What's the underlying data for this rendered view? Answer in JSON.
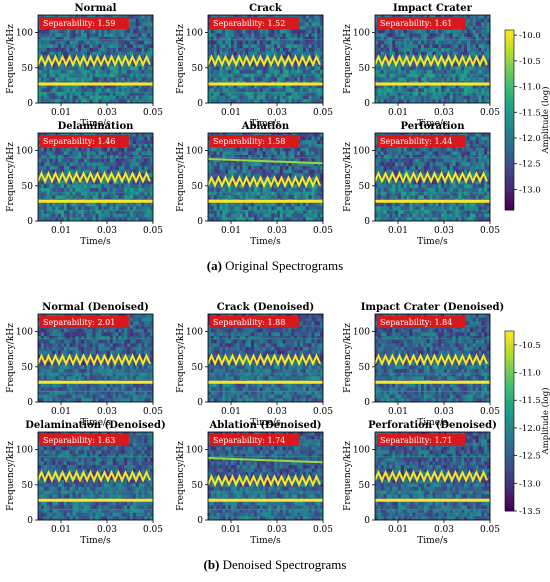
{
  "captions": {
    "top_letter": "(a)",
    "top_text": "Original Spectrograms",
    "bottom_letter": "(b)",
    "bottom_text": "Denoised Spectrograms"
  },
  "axis_labels": {
    "ylabel": "Frequency/kHz",
    "xlabel": "Time/s",
    "colorbar_label": "Amplitude (log)"
  },
  "chart_data": [
    {
      "type": "heatmap",
      "group": "original",
      "x_ticks": [
        0.01,
        0.03,
        0.05
      ],
      "x_tick_labels": [
        "0.01",
        "0.03",
        "0.05"
      ],
      "y_ticks": [
        0,
        50,
        100
      ],
      "y_tick_labels": [
        "0",
        "50",
        "100"
      ],
      "xlim": [
        0,
        0.05
      ],
      "ylim": [
        0,
        125
      ],
      "colorbar": {
        "range": [
          -13.4,
          -9.9
        ],
        "ticks": [
          -10.0,
          -10.5,
          -11.0,
          -11.5,
          -12.0,
          -12.5,
          -13.0
        ],
        "tick_labels": [
          "-10.0",
          "-10.5",
          "-11.0",
          "-11.5",
          "-12.0",
          "-12.5",
          "-13.0"
        ],
        "colormap": "viridis"
      },
      "panels": [
        {
          "title": "Normal",
          "separability_label": "Separability: 1.59",
          "separability": 1.59,
          "zigzag_khz": 60,
          "lines_khz": [
            27
          ],
          "extra_line_khz": null
        },
        {
          "title": "Crack",
          "separability_label": "Separability: 1.52",
          "separability": 1.52,
          "zigzag_khz": 60,
          "lines_khz": [
            27
          ],
          "extra_line_khz": null
        },
        {
          "title": "Impact Crater",
          "separability_label": "Separability: 1.61",
          "separability": 1.61,
          "zigzag_khz": 60,
          "lines_khz": [
            27
          ],
          "extra_line_khz": null
        },
        {
          "title": "Delamination",
          "separability_label": "Separability: 1.46",
          "separability": 1.46,
          "zigzag_khz": 62,
          "lines_khz": [
            28
          ],
          "extra_line_khz": null
        },
        {
          "title": "Ablation",
          "separability_label": "Separability: 1.58",
          "separability": 1.58,
          "zigzag_khz": 56,
          "lines_khz": [
            28
          ],
          "extra_line_khz": 85
        },
        {
          "title": "Perforation",
          "separability_label": "Separability: 1.44",
          "separability": 1.44,
          "zigzag_khz": 62,
          "lines_khz": [
            28
          ],
          "extra_line_khz": null
        }
      ]
    },
    {
      "type": "heatmap",
      "group": "denoised",
      "x_ticks": [
        0.01,
        0.03,
        0.05
      ],
      "x_tick_labels": [
        "0.01",
        "0.03",
        "0.05"
      ],
      "y_ticks": [
        0,
        50,
        100
      ],
      "y_tick_labels": [
        "0",
        "50",
        "100"
      ],
      "xlim": [
        0,
        0.05
      ],
      "ylim": [
        0,
        125
      ],
      "colorbar": {
        "range": [
          -13.5,
          -10.25
        ],
        "ticks": [
          -10.5,
          -11.0,
          -11.5,
          -12.0,
          -12.5,
          -13.0,
          -13.5
        ],
        "tick_labels": [
          "-10.5",
          "-11.0",
          "-11.5",
          "-12.0",
          "-12.5",
          "-13.0",
          "-13.5"
        ],
        "colormap": "viridis"
      },
      "panels": [
        {
          "title": "Normal (Denoised)",
          "separability_label": "Separability: 2.01",
          "separability": 2.01,
          "zigzag_khz": 60,
          "lines_khz": [
            28
          ],
          "extra_line_khz": null
        },
        {
          "title": "Crack (Denoised)",
          "separability_label": "Separability: 1.88",
          "separability": 1.88,
          "zigzag_khz": 60,
          "lines_khz": [
            28
          ],
          "extra_line_khz": null
        },
        {
          "title": "Impact Crater (Denoised)",
          "separability_label": "Separability: 1.84",
          "separability": 1.84,
          "zigzag_khz": 60,
          "lines_khz": [
            28
          ],
          "extra_line_khz": null
        },
        {
          "title": "Delamination (Denoised)",
          "separability_label": "Separability: 1.63",
          "separability": 1.63,
          "zigzag_khz": 62,
          "lines_khz": [
            28
          ],
          "extra_line_khz": null
        },
        {
          "title": "Ablation (Denoised)",
          "separability_label": "Separability: 1.74",
          "separability": 1.74,
          "zigzag_khz": 56,
          "lines_khz": [
            28
          ],
          "extra_line_khz": 85
        },
        {
          "title": "Perforation (Denoised)",
          "separability_label": "Separability: 1.71",
          "separability": 1.71,
          "zigzag_khz": 62,
          "lines_khz": [
            28
          ],
          "extra_line_khz": null
        }
      ]
    }
  ]
}
